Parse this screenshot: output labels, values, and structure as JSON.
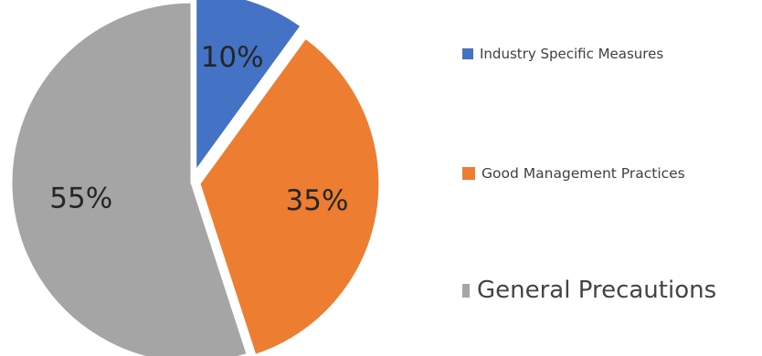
{
  "chart_data": {
    "type": "pie",
    "categories": [
      "Industry Specific Measures",
      "Good Management Practices",
      "General Precautions"
    ],
    "values": [
      10,
      35,
      55
    ],
    "value_labels": [
      "10%",
      "35%",
      "55%"
    ],
    "colors": [
      "#4472C4",
      "#ED7D31",
      "#A5A5A5"
    ],
    "title": "",
    "legend_position": "right",
    "exploded": true
  }
}
